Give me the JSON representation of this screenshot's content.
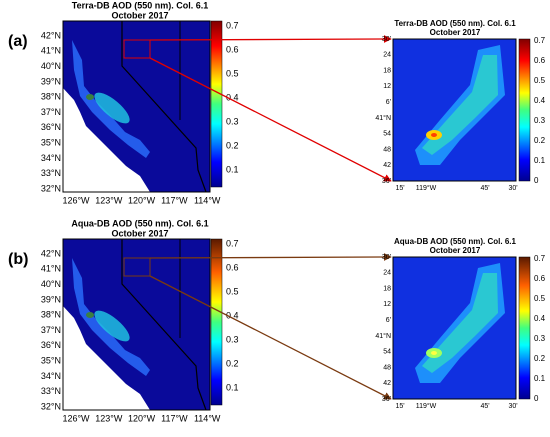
{
  "panels": [
    {
      "label": "(a)",
      "map": {
        "title": "Terra-DB AOD (550 nm). Col. 6.1",
        "subtitle": "October 2017",
        "lat_labels": [
          "42°N",
          "41°N",
          "40°N",
          "39°N",
          "38°N",
          "37°N",
          "36°N",
          "35°N",
          "34°N",
          "33°N",
          "32°N"
        ],
        "lon_labels": [
          "126°W",
          "123°W",
          "120°W",
          "117°W",
          "114°W"
        ],
        "colorbar_labels": [
          "0.7",
          "0.6",
          "0.5",
          "0.4",
          "0.3",
          "0.2",
          "0.1"
        ]
      },
      "zoom": {
        "title": "Terra-DB AOD (550 nm). Col. 6.1",
        "subtitle": "October 2017",
        "lat_labels": [
          "30'",
          "24",
          "18",
          "12",
          "6'",
          "41°N",
          "54",
          "48",
          "42",
          "36'"
        ],
        "lon_labels": [
          "15'",
          "119°W",
          "45'",
          "30'"
        ],
        "colorbar_labels": [
          "0.7",
          "0.6",
          "0.5",
          "0.4",
          "0.3",
          "0.2",
          "0.1",
          "0"
        ]
      }
    },
    {
      "label": "(b)",
      "map": {
        "title": "Aqua-DB AOD (550 nm). Col. 6.1",
        "subtitle": "October 2017",
        "lat_labels": [
          "42°N",
          "41°N",
          "40°N",
          "39°N",
          "38°N",
          "37°N",
          "36°N",
          "35°N",
          "34°N",
          "33°N",
          "32°N"
        ],
        "lon_labels": [
          "126°W",
          "123°W",
          "120°W",
          "117°W",
          "114°W"
        ],
        "colorbar_labels": [
          "0.7",
          "0.6",
          "0.5",
          "0.4",
          "0.3",
          "0.2",
          "0.1"
        ]
      },
      "zoom": {
        "title": "Aqua-DB AOD (550 nm). Col. 6.1",
        "subtitle": "October 2017",
        "lat_labels": [
          "30'",
          "24",
          "18",
          "12",
          "6'",
          "41°N",
          "54",
          "48",
          "42",
          "36'"
        ],
        "lon_labels": [
          "15'",
          "119°W",
          "45'",
          "30'"
        ],
        "colorbar_labels": [
          "0.7",
          "0.6",
          "0.5",
          "0.4",
          "0.3",
          "0.2",
          "0.1",
          "0"
        ]
      }
    }
  ]
}
